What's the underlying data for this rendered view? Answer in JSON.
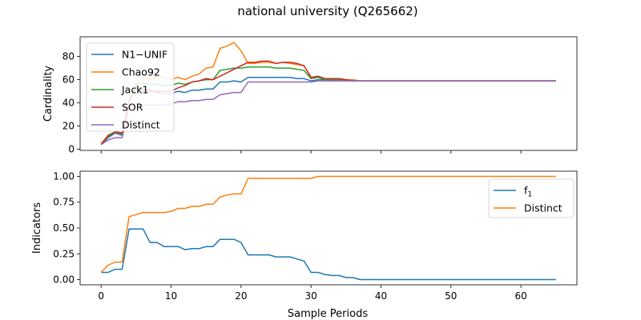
{
  "chart_data": {
    "title": "national university (Q265662)",
    "xlabel": "Sample Periods",
    "x_ticks": [
      0,
      10,
      20,
      30,
      40,
      50,
      60
    ],
    "xlim": [
      -3,
      68
    ],
    "colors": {
      "N1-UNIF": "#1f77b4",
      "Chao92": "#ff7f0e",
      "Jack1": "#2ca02c",
      "SOR": "#d62728",
      "Distinct": "#9467bd"
    },
    "panels": [
      {
        "type": "line",
        "ylabel": "Cardinality",
        "ylim": [
          -1,
          97
        ],
        "y_ticks": [
          0,
          20,
          40,
          60,
          80
        ],
        "legend_position": "upper-left",
        "series": [
          {
            "name": "N1−UNIF",
            "color": "#1f77b4",
            "x": [
              0,
              1,
              2,
              3,
              4,
              5,
              6,
              7,
              8,
              9,
              10,
              11,
              12,
              13,
              14,
              15,
              16,
              17,
              18,
              19,
              20,
              21,
              22,
              23,
              24,
              25,
              26,
              27,
              28,
              29,
              30,
              31,
              32,
              33,
              34,
              35,
              36,
              37,
              38,
              65
            ],
            "y": [
              4,
              10,
              14,
              12,
              41,
              54,
              52,
              51,
              49,
              48,
              48,
              50,
              49,
              51,
              51,
              52,
              52,
              58,
              58,
              59,
              58,
              62,
              62,
              62,
              62,
              62,
              62,
              62,
              61,
              61,
              59,
              60,
              60,
              60,
              60,
              60,
              59,
              59,
              59,
              59
            ]
          },
          {
            "name": "Chao92",
            "color": "#ff7f0e",
            "x": [
              0,
              1,
              2,
              3,
              4,
              5,
              6,
              7,
              8,
              9,
              10,
              11,
              12,
              13,
              14,
              15,
              16,
              17,
              18,
              19,
              20,
              21,
              22,
              23,
              24,
              25,
              26,
              27,
              28,
              29,
              30,
              31,
              32,
              33,
              34,
              35,
              36,
              37,
              38,
              65
            ],
            "y": [
              5,
              12,
              15,
              14,
              42,
              57,
              62,
              60,
              63,
              62,
              60,
              62,
              60,
              63,
              65,
              70,
              71,
              87,
              89,
              92,
              85,
              74,
              74,
              75,
              75,
              74,
              75,
              74,
              73,
              72,
              62,
              62,
              61,
              61,
              61,
              60,
              60,
              59,
              59,
              59
            ]
          },
          {
            "name": "Jack1",
            "color": "#2ca02c",
            "x": [
              0,
              1,
              2,
              3,
              4,
              5,
              6,
              7,
              8,
              9,
              10,
              11,
              12,
              13,
              14,
              15,
              16,
              17,
              18,
              19,
              20,
              21,
              22,
              23,
              24,
              25,
              26,
              27,
              28,
              29,
              30,
              31,
              32,
              33,
              34,
              35,
              36,
              37,
              38,
              65
            ],
            "y": [
              4,
              11,
              15,
              13,
              42,
              56,
              57,
              56,
              56,
              55,
              55,
              57,
              56,
              58,
              59,
              60,
              60,
              68,
              69,
              70,
              70,
              71,
              71,
              71,
              71,
              70,
              70,
              70,
              69,
              68,
              61,
              62,
              60,
              60,
              60,
              60,
              59,
              59,
              59,
              59
            ]
          },
          {
            "name": "SOR",
            "color": "#d62728",
            "x": [
              0,
              1,
              2,
              3,
              4,
              5,
              6,
              7,
              8,
              9,
              10,
              11,
              12,
              13,
              14,
              15,
              16,
              17,
              18,
              19,
              20,
              21,
              22,
              23,
              24,
              25,
              26,
              27,
              28,
              29,
              30,
              31,
              32,
              33,
              34,
              35,
              36,
              37,
              38,
              65
            ],
            "y": [
              4,
              12,
              15,
              14,
              42,
              53,
              51,
              50,
              50,
              50,
              50,
              53,
              55,
              58,
              59,
              61,
              60,
              63,
              66,
              69,
              72,
              75,
              75,
              76,
              76,
              74,
              75,
              75,
              74,
              72,
              62,
              63,
              61,
              61,
              61,
              60,
              59,
              59,
              59,
              59
            ]
          },
          {
            "name": "Distinct",
            "color": "#9467bd",
            "x": [
              0,
              1,
              2,
              3,
              4,
              5,
              6,
              7,
              8,
              9,
              10,
              11,
              12,
              13,
              14,
              15,
              16,
              17,
              18,
              19,
              20,
              21,
              22,
              23,
              24,
              25,
              26,
              27,
              28,
              29,
              30,
              31,
              32,
              33,
              34,
              35,
              36,
              37,
              38,
              65
            ],
            "y": [
              4,
              8,
              10,
              10,
              36,
              38,
              38,
              38,
              38,
              38,
              39,
              41,
              41,
              42,
              42,
              43,
              43,
              47,
              48,
              49,
              49,
              58,
              58,
              58,
              58,
              58,
              58,
              58,
              58,
              58,
              58,
              59,
              59,
              59,
              59,
              59,
              59,
              59,
              59,
              59
            ]
          }
        ]
      },
      {
        "type": "line",
        "ylabel": "Indicators",
        "ylim": [
          -0.05,
          1.05
        ],
        "y_ticks": [
          "0.00",
          "0.25",
          "0.50",
          "0.75",
          "1.00"
        ],
        "legend_position": "upper-right",
        "series": [
          {
            "name": "f",
            "name_sub": "1",
            "color": "#1f77b4",
            "x": [
              0,
              1,
              2,
              3,
              4,
              5,
              6,
              7,
              8,
              9,
              10,
              11,
              12,
              13,
              14,
              15,
              16,
              17,
              18,
              19,
              20,
              21,
              22,
              23,
              24,
              25,
              26,
              27,
              28,
              29,
              30,
              31,
              32,
              33,
              34,
              35,
              36,
              37,
              38,
              65
            ],
            "y": [
              0.07,
              0.07,
              0.1,
              0.1,
              0.49,
              0.49,
              0.49,
              0.36,
              0.36,
              0.32,
              0.32,
              0.32,
              0.29,
              0.3,
              0.3,
              0.32,
              0.32,
              0.39,
              0.39,
              0.39,
              0.36,
              0.24,
              0.24,
              0.24,
              0.24,
              0.22,
              0.22,
              0.22,
              0.2,
              0.18,
              0.07,
              0.07,
              0.05,
              0.04,
              0.04,
              0.02,
              0.02,
              0.0,
              0.0,
              0.0
            ]
          },
          {
            "name": "Distinct",
            "color": "#ff7f0e",
            "x": [
              0,
              1,
              2,
              3,
              4,
              5,
              6,
              7,
              8,
              9,
              10,
              11,
              12,
              13,
              14,
              15,
              16,
              17,
              18,
              19,
              20,
              21,
              22,
              23,
              24,
              25,
              26,
              27,
              28,
              29,
              30,
              31,
              32,
              33,
              34,
              35,
              36,
              37,
              38,
              65
            ],
            "y": [
              0.07,
              0.14,
              0.17,
              0.17,
              0.61,
              0.63,
              0.65,
              0.65,
              0.65,
              0.65,
              0.66,
              0.69,
              0.69,
              0.71,
              0.71,
              0.73,
              0.73,
              0.8,
              0.82,
              0.83,
              0.83,
              0.98,
              0.98,
              0.98,
              0.98,
              0.98,
              0.98,
              0.98,
              0.98,
              0.98,
              0.98,
              1.0,
              1.0,
              1.0,
              1.0,
              1.0,
              1.0,
              1.0,
              1.0,
              1.0
            ]
          }
        ]
      }
    ]
  }
}
